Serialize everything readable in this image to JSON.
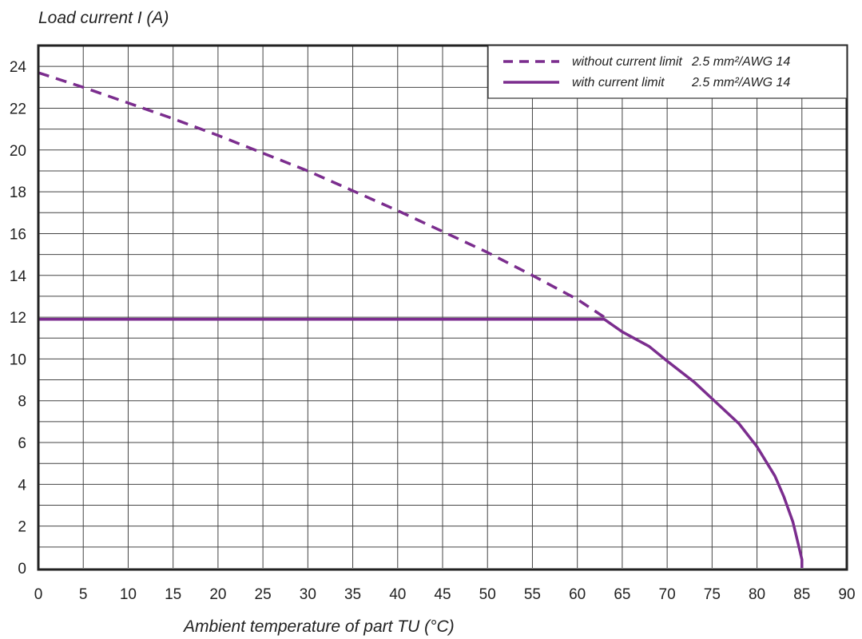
{
  "chart_data": {
    "type": "line",
    "ylabel": "Load current I (A)",
    "xlabel": "Ambient temperature of part TU (°C)",
    "xlim": [
      0,
      90
    ],
    "ylim": [
      0,
      25
    ],
    "x_ticks": [
      "0",
      "5",
      "10",
      "15",
      "20",
      "25",
      "30",
      "35",
      "40",
      "45",
      "50",
      "55",
      "60",
      "65",
      "70",
      "75",
      "80",
      "85",
      "90"
    ],
    "y_ticks": [
      "0",
      "2",
      "4",
      "6",
      "8",
      "10",
      "12",
      "14",
      "16",
      "18",
      "20",
      "22",
      "24"
    ],
    "grid": true,
    "legend_position": "top-right",
    "series": [
      {
        "name": "without current limit",
        "conductor": "2.5 mm²/AWG 14",
        "style": "dashed",
        "x": [
          0,
          5,
          10,
          15,
          20,
          25,
          30,
          35,
          40,
          45,
          50,
          55,
          60,
          63
        ],
        "y": [
          23.7,
          23.0,
          22.25,
          21.5,
          20.7,
          19.85,
          19.0,
          18.05,
          17.1,
          16.1,
          15.1,
          14.0,
          12.85,
          12.0
        ]
      },
      {
        "name": "with current limit",
        "conductor": "2.5 mm²/AWG 14",
        "style": "solid",
        "x": [
          0,
          63,
          65,
          68,
          70,
          73,
          75,
          78,
          80,
          82,
          83,
          84,
          84.5,
          85,
          85
        ],
        "y": [
          11.9,
          11.9,
          11.3,
          10.6,
          9.9,
          8.9,
          8.1,
          6.9,
          5.8,
          4.4,
          3.4,
          2.2,
          1.3,
          0.4,
          0
        ]
      }
    ],
    "line_color": "#7b2d8e"
  }
}
